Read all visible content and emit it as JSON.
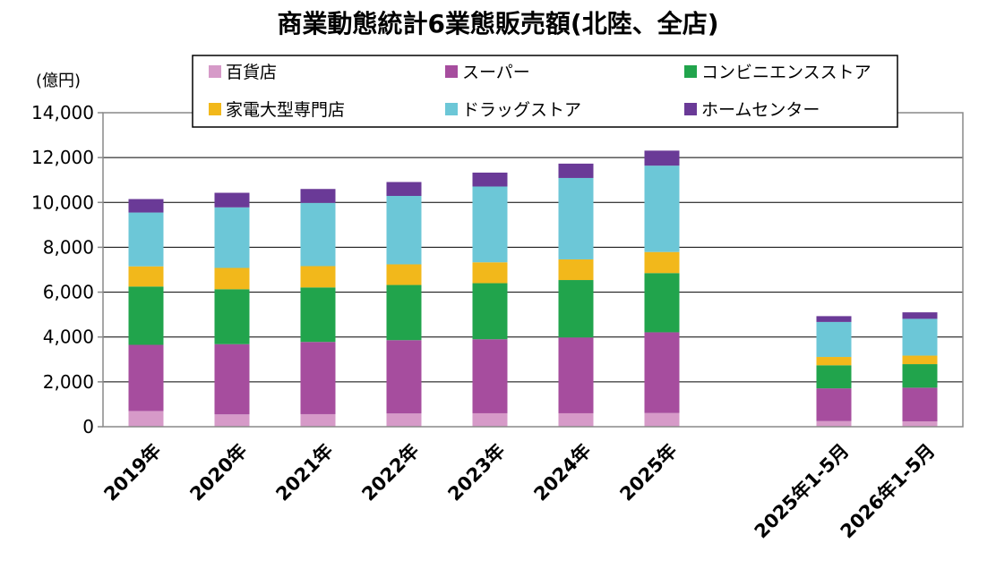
{
  "chart_data": {
    "type": "bar",
    "stacked": true,
    "title": "商業動態統計6業態販売額(北陸、全店)",
    "ylabel": "(億円)",
    "ylim": [
      0,
      14000
    ],
    "yticks": [
      0,
      2000,
      4000,
      6000,
      8000,
      10000,
      12000,
      14000
    ],
    "ytick_labels": [
      "0",
      "2,000",
      "4,000",
      "6,000",
      "8,000",
      "10,000",
      "12,000",
      "14,000"
    ],
    "grid": true,
    "legend_position": "top",
    "categories": [
      "2019年",
      "2020年",
      "2021年",
      "2022年",
      "2023年",
      "2024年",
      "2025年",
      "",
      "2025年1-5月",
      "2026年1-5月"
    ],
    "series": [
      {
        "name": "百貨店",
        "color": "#d69ac8",
        "values": [
          700,
          550,
          560,
          590,
          600,
          600,
          610,
          null,
          250,
          240
        ]
      },
      {
        "name": "スーパー",
        "color": "#a64d9e",
        "values": [
          2950,
          3130,
          3220,
          3270,
          3300,
          3380,
          3600,
          null,
          1460,
          1500
        ]
      },
      {
        "name": "コンビニエンスストア",
        "color": "#21a44c",
        "values": [
          2600,
          2450,
          2430,
          2460,
          2500,
          2560,
          2640,
          null,
          1030,
          1050
        ]
      },
      {
        "name": "家電大型専門店",
        "color": "#f2b81b",
        "values": [
          900,
          950,
          950,
          920,
          930,
          920,
          940,
          null,
          370,
          380
        ]
      },
      {
        "name": "ドラッグストア",
        "color": "#6cc7d7",
        "values": [
          2400,
          2700,
          2820,
          3050,
          3380,
          3630,
          3850,
          null,
          1560,
          1640
        ]
      },
      {
        "name": "ホームセンター",
        "color": "#6a3a97",
        "values": [
          600,
          650,
          620,
          620,
          620,
          640,
          670,
          null,
          260,
          290
        ]
      }
    ]
  }
}
